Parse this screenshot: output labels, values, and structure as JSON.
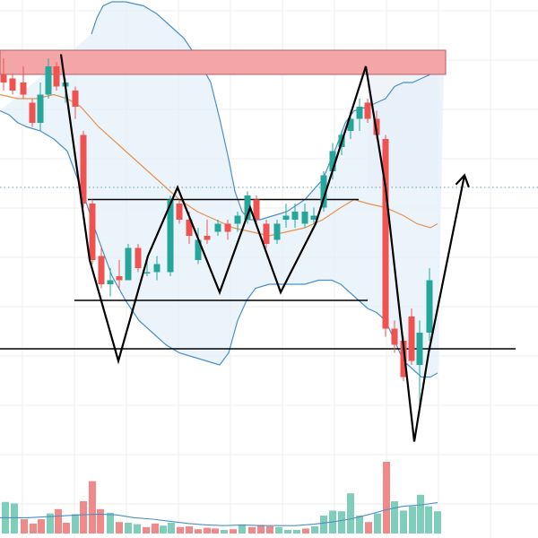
{
  "chart_data": {
    "type": "candlestick",
    "title": "",
    "xlabel": "",
    "ylabel": "",
    "ylim": [
      0,
      100
    ],
    "volume_ylim": [
      0,
      100
    ],
    "grid": true,
    "colors": {
      "up": "#26a69a",
      "down": "#ef5350",
      "volume_up": "#7fcdbb",
      "volume_down": "#f08a8a",
      "band": "#4a90c8",
      "band_fill": "#e6f0fa",
      "ma": "#e8904a",
      "volume_ma": "#4a90c8",
      "resistance_zone": "#f3a5a8",
      "annotation": "#000000",
      "dotted_level": "#5aa0a8",
      "grid": "#eeeeee",
      "projection_shade": "#f0f4f8"
    },
    "candles": [
      {
        "x": 4,
        "o": 86,
        "h": 90,
        "l": 82,
        "c": 84
      },
      {
        "x": 14,
        "o": 85,
        "h": 86,
        "l": 81,
        "c": 82
      },
      {
        "x": 26,
        "o": 84,
        "h": 88,
        "l": 80,
        "c": 81
      },
      {
        "x": 36,
        "o": 79,
        "h": 80,
        "l": 73,
        "c": 74
      },
      {
        "x": 45,
        "o": 74,
        "h": 84,
        "l": 72,
        "c": 81
      },
      {
        "x": 54,
        "o": 81,
        "h": 90,
        "l": 80,
        "c": 88
      },
      {
        "x": 63,
        "o": 88,
        "h": 89,
        "l": 82,
        "c": 83
      },
      {
        "x": 73,
        "o": 83,
        "h": 85,
        "l": 79,
        "c": 84
      },
      {
        "x": 84,
        "o": 82,
        "h": 83,
        "l": 75,
        "c": 78
      },
      {
        "x": 93,
        "o": 71,
        "h": 72,
        "l": 53,
        "c": 54
      },
      {
        "x": 103,
        "o": 54,
        "h": 55,
        "l": 39,
        "c": 40
      },
      {
        "x": 113,
        "o": 41,
        "h": 43,
        "l": 33,
        "c": 34
      },
      {
        "x": 123,
        "o": 34,
        "h": 38,
        "l": 31,
        "c": 35
      },
      {
        "x": 133,
        "o": 36,
        "h": 40,
        "l": 33,
        "c": 35
      },
      {
        "x": 143,
        "o": 35,
        "h": 44,
        "l": 35,
        "c": 43
      },
      {
        "x": 154,
        "o": 43,
        "h": 44,
        "l": 37,
        "c": 38
      },
      {
        "x": 164,
        "o": 37,
        "h": 41,
        "l": 36,
        "c": 37
      },
      {
        "x": 175,
        "o": 37,
        "h": 41,
        "l": 35,
        "c": 39
      },
      {
        "x": 190,
        "o": 37,
        "h": 56,
        "l": 36,
        "c": 55
      },
      {
        "x": 200,
        "o": 54,
        "h": 55,
        "l": 49,
        "c": 50
      },
      {
        "x": 211,
        "o": 50,
        "h": 52,
        "l": 44,
        "c": 46
      },
      {
        "x": 221,
        "o": 40,
        "h": 48,
        "l": 39,
        "c": 45
      },
      {
        "x": 231,
        "o": 46,
        "h": 50,
        "l": 44,
        "c": 45
      },
      {
        "x": 243,
        "o": 47,
        "h": 50,
        "l": 46,
        "c": 49
      },
      {
        "x": 254,
        "o": 49,
        "h": 50,
        "l": 45,
        "c": 47
      },
      {
        "x": 265,
        "o": 49,
        "h": 52,
        "l": 47,
        "c": 51
      },
      {
        "x": 276,
        "o": 50,
        "h": 57,
        "l": 49,
        "c": 56
      },
      {
        "x": 286,
        "o": 55,
        "h": 56,
        "l": 48,
        "c": 50
      },
      {
        "x": 297,
        "o": 49,
        "h": 50,
        "l": 43,
        "c": 44
      },
      {
        "x": 309,
        "o": 45,
        "h": 50,
        "l": 44,
        "c": 49
      },
      {
        "x": 319,
        "o": 50,
        "h": 54,
        "l": 48,
        "c": 51
      },
      {
        "x": 329,
        "o": 50,
        "h": 54,
        "l": 48,
        "c": 52
      },
      {
        "x": 340,
        "o": 49,
        "h": 54,
        "l": 48,
        "c": 52
      },
      {
        "x": 350,
        "o": 50,
        "h": 53,
        "l": 49,
        "c": 51
      },
      {
        "x": 361,
        "o": 53,
        "h": 62,
        "l": 52,
        "c": 61
      },
      {
        "x": 371,
        "o": 62,
        "h": 69,
        "l": 60,
        "c": 67
      },
      {
        "x": 381,
        "o": 68,
        "h": 72,
        "l": 66,
        "c": 71
      },
      {
        "x": 391,
        "o": 72,
        "h": 77,
        "l": 70,
        "c": 75
      },
      {
        "x": 401,
        "o": 75,
        "h": 80,
        "l": 72,
        "c": 78
      },
      {
        "x": 410,
        "o": 79,
        "h": 80,
        "l": 74,
        "c": 75
      },
      {
        "x": 420,
        "o": 75,
        "h": 77,
        "l": 70,
        "c": 71
      },
      {
        "x": 430,
        "o": 70,
        "h": 71,
        "l": 21,
        "c": 23
      },
      {
        "x": 440,
        "o": 23,
        "h": 25,
        "l": 17,
        "c": 19
      },
      {
        "x": 450,
        "o": 20,
        "h": 21,
        "l": 10,
        "c": 11
      },
      {
        "x": 459,
        "o": 26,
        "h": 28,
        "l": 14,
        "c": 15
      },
      {
        "x": 468,
        "o": 14,
        "h": 25,
        "l": 2,
        "c": 22
      },
      {
        "x": 479,
        "o": 22,
        "h": 38,
        "l": 20,
        "c": 35
      }
    ],
    "volume": [
      {
        "x": 6,
        "v": 44,
        "up": true
      },
      {
        "x": 16,
        "v": 42,
        "up": true
      },
      {
        "x": 27,
        "v": 20,
        "up": false
      },
      {
        "x": 37,
        "v": 14,
        "up": false
      },
      {
        "x": 46,
        "v": 20,
        "up": false
      },
      {
        "x": 56,
        "v": 28,
        "up": true
      },
      {
        "x": 65,
        "v": 34,
        "up": false
      },
      {
        "x": 74,
        "v": 15,
        "up": false
      },
      {
        "x": 84,
        "v": 27,
        "up": true
      },
      {
        "x": 93,
        "v": 45,
        "up": false
      },
      {
        "x": 103,
        "v": 73,
        "up": false
      },
      {
        "x": 112,
        "v": 34,
        "up": false
      },
      {
        "x": 123,
        "v": 29,
        "up": true
      },
      {
        "x": 133,
        "v": 16,
        "up": false
      },
      {
        "x": 143,
        "v": 15,
        "up": true
      },
      {
        "x": 153,
        "v": 13,
        "up": true
      },
      {
        "x": 163,
        "v": 9,
        "up": false
      },
      {
        "x": 173,
        "v": 14,
        "up": false
      },
      {
        "x": 182,
        "v": 11,
        "up": true
      },
      {
        "x": 191,
        "v": 15,
        "up": true
      },
      {
        "x": 201,
        "v": 9,
        "up": false
      },
      {
        "x": 211,
        "v": 10,
        "up": false
      },
      {
        "x": 221,
        "v": 6,
        "up": false
      },
      {
        "x": 231,
        "v": 8,
        "up": false
      },
      {
        "x": 240,
        "v": 7,
        "up": false
      },
      {
        "x": 250,
        "v": 5,
        "up": true
      },
      {
        "x": 260,
        "v": 6,
        "up": false
      },
      {
        "x": 270,
        "v": 12,
        "up": true
      },
      {
        "x": 281,
        "v": 9,
        "up": false
      },
      {
        "x": 291,
        "v": 12,
        "up": false
      },
      {
        "x": 301,
        "v": 10,
        "up": false
      },
      {
        "x": 311,
        "v": 9,
        "up": true
      },
      {
        "x": 321,
        "v": 5,
        "up": true
      },
      {
        "x": 331,
        "v": 5,
        "up": true
      },
      {
        "x": 341,
        "v": 7,
        "up": false
      },
      {
        "x": 351,
        "v": 10,
        "up": true
      },
      {
        "x": 361,
        "v": 25,
        "up": true
      },
      {
        "x": 371,
        "v": 32,
        "up": true
      },
      {
        "x": 381,
        "v": 31,
        "up": true
      },
      {
        "x": 391,
        "v": 56,
        "up": true
      },
      {
        "x": 401,
        "v": 25,
        "up": true
      },
      {
        "x": 411,
        "v": 16,
        "up": false
      },
      {
        "x": 421,
        "v": 28,
        "up": true
      },
      {
        "x": 431,
        "v": 100,
        "up": false
      },
      {
        "x": 440,
        "v": 45,
        "up": true
      },
      {
        "x": 450,
        "v": 32,
        "up": true
      },
      {
        "x": 460,
        "v": 38,
        "up": true
      },
      {
        "x": 469,
        "v": 54,
        "up": true
      },
      {
        "x": 478,
        "v": 38,
        "up": true
      },
      {
        "x": 488,
        "v": 31,
        "up": true
      }
    ],
    "bollinger_upper": [
      [
        102,
        96
      ],
      [
        108,
        100
      ],
      [
        115,
        103
      ],
      [
        125,
        104
      ],
      [
        140,
        104
      ],
      [
        160,
        103
      ],
      [
        175,
        101
      ],
      [
        190,
        98
      ],
      [
        205,
        95
      ],
      [
        220,
        90
      ],
      [
        235,
        84
      ],
      [
        245,
        75
      ],
      [
        255,
        65
      ],
      [
        262,
        57
      ],
      [
        270,
        52
      ],
      [
        278,
        50
      ],
      [
        290,
        50
      ],
      [
        305,
        51
      ],
      [
        320,
        52
      ],
      [
        340,
        55
      ],
      [
        360,
        60
      ],
      [
        375,
        68
      ],
      [
        385,
        74
      ],
      [
        395,
        77
      ],
      [
        410,
        78
      ],
      [
        420,
        79
      ],
      [
        430,
        80
      ],
      [
        440,
        83
      ],
      [
        450,
        84
      ],
      [
        460,
        84
      ],
      [
        470,
        85
      ],
      [
        480,
        86
      ],
      [
        495,
        87
      ]
    ],
    "bollinger_lower": [
      [
        0,
        77
      ],
      [
        10,
        76
      ],
      [
        20,
        74
      ],
      [
        30,
        73
      ],
      [
        45,
        72
      ],
      [
        60,
        70
      ],
      [
        75,
        67
      ],
      [
        95,
        55
      ],
      [
        110,
        45
      ],
      [
        125,
        36
      ],
      [
        140,
        30
      ],
      [
        155,
        25
      ],
      [
        170,
        22
      ],
      [
        185,
        19
      ],
      [
        200,
        17
      ],
      [
        215,
        16
      ],
      [
        230,
        15
      ],
      [
        245,
        14
      ],
      [
        255,
        17
      ],
      [
        265,
        25
      ],
      [
        275,
        30
      ],
      [
        285,
        33
      ],
      [
        300,
        34
      ],
      [
        320,
        34
      ],
      [
        340,
        34
      ],
      [
        355,
        35
      ],
      [
        370,
        35
      ],
      [
        380,
        34
      ],
      [
        395,
        31
      ],
      [
        410,
        28
      ],
      [
        420,
        27
      ],
      [
        430,
        25
      ],
      [
        440,
        20
      ],
      [
        450,
        15
      ],
      [
        460,
        13
      ],
      [
        470,
        11
      ],
      [
        480,
        11
      ],
      [
        488,
        12
      ]
    ],
    "moving_average": [
      [
        0,
        81
      ],
      [
        20,
        80
      ],
      [
        40,
        80
      ],
      [
        60,
        81
      ],
      [
        75,
        80
      ],
      [
        90,
        78
      ],
      [
        110,
        73
      ],
      [
        130,
        69
      ],
      [
        150,
        65
      ],
      [
        170,
        61
      ],
      [
        185,
        58
      ],
      [
        200,
        55
      ],
      [
        220,
        52
      ],
      [
        240,
        50
      ],
      [
        260,
        48
      ],
      [
        280,
        47
      ],
      [
        300,
        46
      ],
      [
        320,
        47
      ],
      [
        340,
        48
      ],
      [
        360,
        50
      ],
      [
        380,
        53
      ],
      [
        395,
        55
      ],
      [
        410,
        54
      ],
      [
        430,
        53
      ],
      [
        450,
        51
      ],
      [
        465,
        49
      ],
      [
        480,
        48
      ],
      [
        488,
        49
      ]
    ],
    "volume_ma": [
      [
        0,
        22
      ],
      [
        30,
        22
      ],
      [
        60,
        24
      ],
      [
        90,
        26
      ],
      [
        110,
        27
      ],
      [
        130,
        26
      ],
      [
        150,
        22
      ],
      [
        170,
        20
      ],
      [
        190,
        17
      ],
      [
        210,
        14
      ],
      [
        230,
        12
      ],
      [
        250,
        11
      ],
      [
        270,
        12
      ],
      [
        290,
        11
      ],
      [
        310,
        11
      ],
      [
        330,
        11
      ],
      [
        350,
        13
      ],
      [
        370,
        16
      ],
      [
        390,
        20
      ],
      [
        410,
        26
      ],
      [
        430,
        33
      ],
      [
        450,
        38
      ],
      [
        470,
        40
      ],
      [
        488,
        43
      ]
    ],
    "resistance_zone": [
      [
        0,
        86
      ],
      [
        497,
        92
      ]
    ],
    "support_line": {
      "y": 18,
      "x_range": [
        0,
        575
      ]
    },
    "range_top": {
      "y": 55,
      "x_range": [
        98,
        400
      ]
    },
    "range_bottom": {
      "y": 30,
      "x_range": [
        83,
        410
      ]
    },
    "dotted_level": {
      "y": 58
    },
    "projection_shade": [
      [
        410,
        58
      ],
      [
        488,
        92
      ]
    ],
    "zigzag": [
      [
        68,
        91
      ],
      [
        100,
        40
      ],
      [
        132,
        15
      ],
      [
        165,
        41
      ],
      [
        198,
        58
      ],
      [
        245,
        32
      ],
      [
        279,
        53
      ],
      [
        313,
        32
      ],
      [
        352,
        49
      ],
      [
        408,
        88
      ],
      [
        430,
        58
      ],
      [
        462,
        -5
      ],
      [
        478,
        17
      ]
    ],
    "projection_arrow": [
      [
        478,
        17
      ],
      [
        518,
        61
      ]
    ]
  }
}
